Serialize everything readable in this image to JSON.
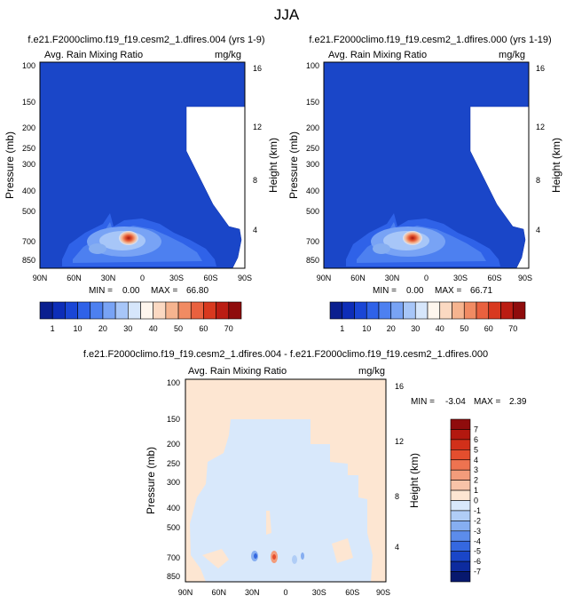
{
  "figure": {
    "title": "JJA"
  },
  "colors": {
    "panel_fill": "#1a46c8",
    "panel_edge": "#0a2fa8",
    "diff_background": "#fde6d2",
    "diff_neg1": "#d8e8fb",
    "bar_border": "#000000"
  },
  "chart_data": [
    {
      "type": "heatmap",
      "title": "f.e21.F2000climo.f19_f19.cesm2_1.dfires.004 (yrs 1-9)",
      "subtitle_left": "Avg. Rain Mixing Ratio",
      "subtitle_right": "mg/kg",
      "ylabel": "Pressure (mb)",
      "ylabel_right": "Height (km)",
      "x_ticks": [
        "90N",
        "60N",
        "30N",
        "0",
        "30S",
        "60S",
        "90S"
      ],
      "y_ticks": [
        "100",
        "150",
        "200",
        "250",
        "300",
        "400",
        "500",
        "700",
        "850"
      ],
      "y_ticks_right": [
        "16",
        "12",
        "8",
        "4"
      ],
      "stats": {
        "min_label": "MIN =",
        "min": "0.00",
        "max_label": "MAX =",
        "max": "66.80"
      },
      "max_location": {
        "lat": 12,
        "pressure": 700
      }
    },
    {
      "type": "heatmap",
      "title": "f.e21.F2000climo.f19_f19.cesm2_1.dfires.000 (yrs 1-19)",
      "subtitle_left": "Avg. Rain Mixing Ratio",
      "subtitle_right": "mg/kg",
      "ylabel": "Pressure (mb)",
      "ylabel_right": "Height (km)",
      "x_ticks": [
        "90N",
        "60N",
        "30N",
        "0",
        "30S",
        "60S",
        "90S"
      ],
      "y_ticks": [
        "100",
        "150",
        "200",
        "250",
        "300",
        "400",
        "500",
        "700",
        "850"
      ],
      "y_ticks_right": [
        "16",
        "12",
        "8",
        "4"
      ],
      "stats": {
        "min_label": "MIN =",
        "min": "0.00",
        "max_label": "MAX =",
        "max": "66.71"
      },
      "max_location": {
        "lat": 12,
        "pressure": 700
      }
    },
    {
      "type": "heatmap",
      "title": "f.e21.F2000climo.f19_f19.cesm2_1.dfires.004 - f.e21.F2000climo.f19_f19.cesm2_1.dfires.000",
      "subtitle_left": "Avg. Rain Mixing Ratio",
      "subtitle_right": "mg/kg",
      "ylabel": "Pressure (mb)",
      "ylabel_right": "Height (km)",
      "x_ticks": [
        "90N",
        "60N",
        "30N",
        "0",
        "30S",
        "60S",
        "90S"
      ],
      "y_ticks": [
        "100",
        "150",
        "200",
        "250",
        "300",
        "400",
        "500",
        "700",
        "850"
      ],
      "y_ticks_right": [
        "16",
        "12",
        "8",
        "4"
      ],
      "stats": {
        "min_label": "MIN =",
        "min": "-3.04",
        "max_label": "MAX =",
        "max": "2.39"
      }
    }
  ],
  "colorbars": {
    "top": {
      "labels": [
        "1",
        "10",
        "20",
        "30",
        "40",
        "50",
        "60",
        "70"
      ],
      "colors": [
        "#0a1f8f",
        "#0d2db8",
        "#1a46d6",
        "#2f62e8",
        "#4d80f0",
        "#78a3f5",
        "#a7c6f8",
        "#d6e6fb",
        "#fef6ee",
        "#fbd9c2",
        "#f6b48f",
        "#f18b63",
        "#e9613f",
        "#d8391f",
        "#bb1d13",
        "#8f0c0c"
      ]
    },
    "bottom": {
      "labels": [
        "7",
        "6",
        "5",
        "4",
        "3",
        "2",
        "1",
        "0",
        "-1",
        "-2",
        "-3",
        "-4",
        "-5",
        "-6",
        "-7"
      ],
      "colors": [
        "#8f0c0c",
        "#b3180f",
        "#d1301a",
        "#e44e2e",
        "#ee7350",
        "#f39c7b",
        "#f8c3a8",
        "#fde6d2",
        "#d8e8fb",
        "#b0cdf6",
        "#86aef1",
        "#5c8ceb",
        "#3568e0",
        "#1a46c8",
        "#0d2b9e",
        "#07186e"
      ]
    }
  }
}
